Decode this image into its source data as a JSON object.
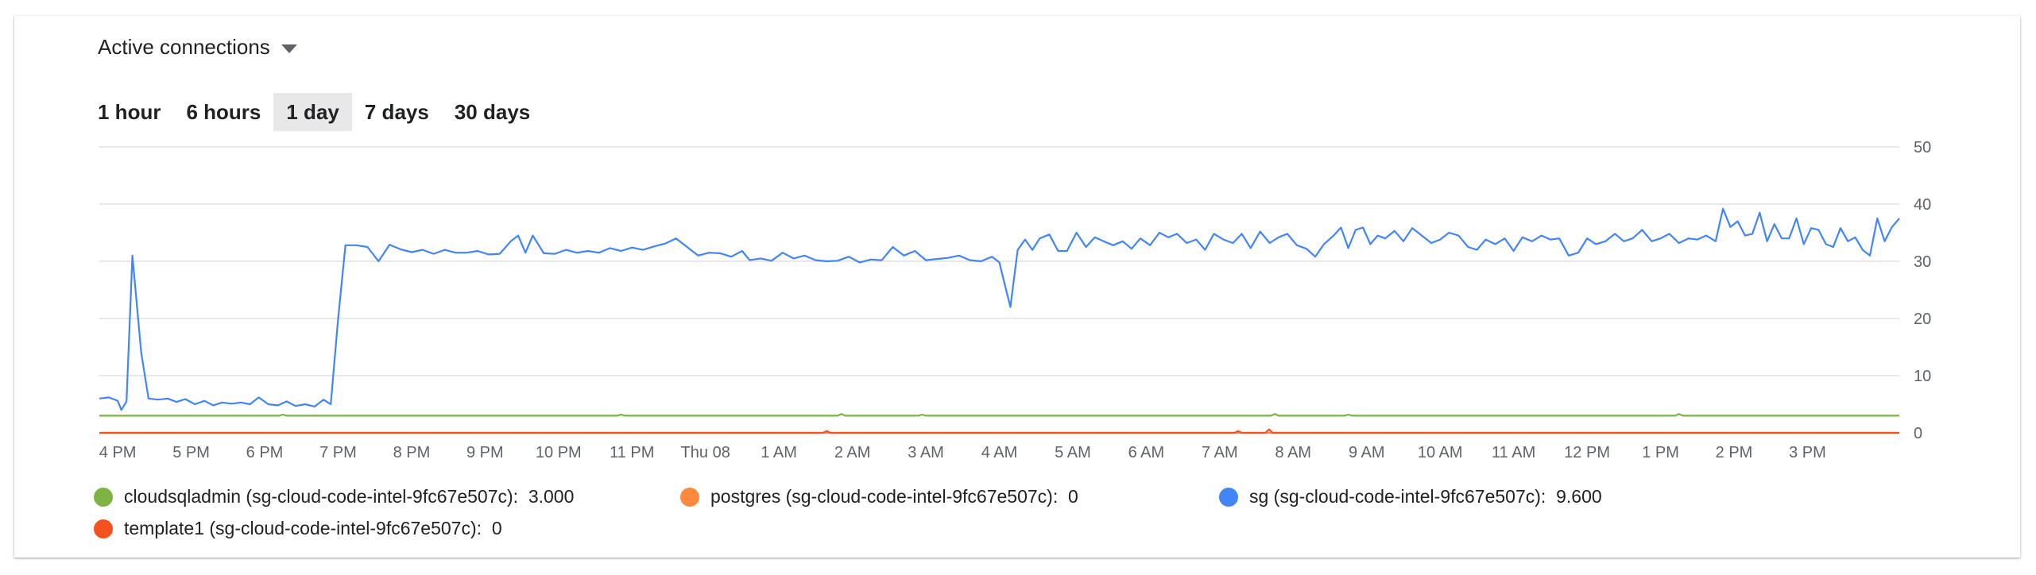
{
  "metric_selector": {
    "label": "Active connections",
    "icon": "caret-down-icon"
  },
  "time_ranges": [
    {
      "label": "1 hour",
      "active": false
    },
    {
      "label": "6 hours",
      "active": false
    },
    {
      "label": "1 day",
      "active": true
    },
    {
      "label": "7 days",
      "active": false
    },
    {
      "label": "30 days",
      "active": false
    }
  ],
  "chart_data": {
    "type": "line",
    "title": "",
    "xlabel": "",
    "ylabel": "",
    "x_unit": "hours since 4 PM",
    "ylim": [
      0,
      50
    ],
    "xlim": [
      -0.25,
      24.25
    ],
    "y_ticks": [
      "0",
      "10",
      "20",
      "30",
      "40",
      "50"
    ],
    "x_ticks": [
      "4 PM",
      "5 PM",
      "6 PM",
      "7 PM",
      "8 PM",
      "9 PM",
      "10 PM",
      "11 PM",
      "Thu 08",
      "1 AM",
      "2 AM",
      "3 AM",
      "4 AM",
      "5 AM",
      "6 AM",
      "7 AM",
      "8 AM",
      "9 AM",
      "10 AM",
      "11 AM",
      "12 PM",
      "1 PM",
      "2 PM",
      "3 PM"
    ],
    "grid": true,
    "legend_position": "bottom",
    "series": [
      {
        "name": "cloudsqladmin (sg-cloud-code-intel-9fc67e507c)",
        "color": "#7cb342",
        "legend_value": "3.000",
        "points": [
          [
            -0.25,
            3
          ],
          [
            2.2,
            3
          ],
          [
            2.25,
            3.2
          ],
          [
            2.3,
            3
          ],
          [
            6.8,
            3
          ],
          [
            6.85,
            3.2
          ],
          [
            6.9,
            3
          ],
          [
            9.8,
            3
          ],
          [
            9.85,
            3.3
          ],
          [
            9.9,
            3
          ],
          [
            10.9,
            3
          ],
          [
            10.95,
            3.2
          ],
          [
            11.0,
            3
          ],
          [
            15.7,
            3
          ],
          [
            15.75,
            3.3
          ],
          [
            15.8,
            3
          ],
          [
            16.7,
            3
          ],
          [
            16.75,
            3.2
          ],
          [
            16.8,
            3
          ],
          [
            21.2,
            3
          ],
          [
            21.25,
            3.3
          ],
          [
            21.3,
            3
          ],
          [
            24.25,
            3
          ]
        ]
      },
      {
        "name": "postgres (sg-cloud-code-intel-9fc67e507c)",
        "color": "#ff8a3d",
        "legend_value": "0",
        "points": [
          [
            -0.25,
            0
          ],
          [
            24.25,
            0
          ]
        ]
      },
      {
        "name": "sg (sg-cloud-code-intel-9fc67e507c)",
        "color": "#4285f4",
        "legend_value": "9.600",
        "points": [
          [
            -0.25,
            6.0
          ],
          [
            -0.12,
            6.2
          ],
          [
            0.0,
            5.6
          ],
          [
            0.05,
            4.0
          ],
          [
            0.12,
            5.5
          ],
          [
            0.2,
            31.0
          ],
          [
            0.32,
            14
          ],
          [
            0.42,
            6.0
          ],
          [
            0.55,
            5.8
          ],
          [
            0.68,
            6.0
          ],
          [
            0.8,
            5.4
          ],
          [
            0.92,
            5.9
          ],
          [
            1.05,
            5.0
          ],
          [
            1.18,
            5.6
          ],
          [
            1.3,
            4.8
          ],
          [
            1.42,
            5.3
          ],
          [
            1.55,
            5.1
          ],
          [
            1.68,
            5.3
          ],
          [
            1.8,
            5.0
          ],
          [
            1.92,
            6.2
          ],
          [
            2.05,
            5.0
          ],
          [
            2.18,
            4.8
          ],
          [
            2.3,
            5.5
          ],
          [
            2.42,
            4.7
          ],
          [
            2.55,
            5.0
          ],
          [
            2.68,
            4.6
          ],
          [
            2.8,
            5.8
          ],
          [
            2.9,
            5.0
          ],
          [
            3.0,
            20
          ],
          [
            3.1,
            32.8
          ],
          [
            3.25,
            32.8
          ],
          [
            3.4,
            32.5
          ],
          [
            3.55,
            30.0
          ],
          [
            3.7,
            32.9
          ],
          [
            3.85,
            32.1
          ],
          [
            4.0,
            31.6
          ],
          [
            4.15,
            32.0
          ],
          [
            4.3,
            31.3
          ],
          [
            4.45,
            32.0
          ],
          [
            4.6,
            31.5
          ],
          [
            4.75,
            31.5
          ],
          [
            4.9,
            31.8
          ],
          [
            5.05,
            31.2
          ],
          [
            5.2,
            31.3
          ],
          [
            5.35,
            33.5
          ],
          [
            5.45,
            34.5
          ],
          [
            5.55,
            31.5
          ],
          [
            5.65,
            34.5
          ],
          [
            5.8,
            31.4
          ],
          [
            5.95,
            31.3
          ],
          [
            6.1,
            32.0
          ],
          [
            6.25,
            31.5
          ],
          [
            6.4,
            31.8
          ],
          [
            6.55,
            31.5
          ],
          [
            6.7,
            32.3
          ],
          [
            6.85,
            31.8
          ],
          [
            7.0,
            32.4
          ],
          [
            7.15,
            32.0
          ],
          [
            7.3,
            32.6
          ],
          [
            7.45,
            33.1
          ],
          [
            7.6,
            34.0
          ],
          [
            7.75,
            32.5
          ],
          [
            7.9,
            31.0
          ],
          [
            8.05,
            31.5
          ],
          [
            8.2,
            31.4
          ],
          [
            8.35,
            30.8
          ],
          [
            8.5,
            31.8
          ],
          [
            8.6,
            30.2
          ],
          [
            8.75,
            30.5
          ],
          [
            8.9,
            30.1
          ],
          [
            9.05,
            31.5
          ],
          [
            9.2,
            30.5
          ],
          [
            9.35,
            31.0
          ],
          [
            9.5,
            30.2
          ],
          [
            9.65,
            30.0
          ],
          [
            9.8,
            30.1
          ],
          [
            9.95,
            30.8
          ],
          [
            10.1,
            29.8
          ],
          [
            10.25,
            30.3
          ],
          [
            10.4,
            30.2
          ],
          [
            10.55,
            32.5
          ],
          [
            10.7,
            31.0
          ],
          [
            10.85,
            31.8
          ],
          [
            11.0,
            30.2
          ],
          [
            11.15,
            30.4
          ],
          [
            11.3,
            30.6
          ],
          [
            11.45,
            31.0
          ],
          [
            11.6,
            30.2
          ],
          [
            11.75,
            30.0
          ],
          [
            11.9,
            30.8
          ],
          [
            12.0,
            29.8
          ],
          [
            12.15,
            22.0
          ],
          [
            12.25,
            32.0
          ],
          [
            12.35,
            33.8
          ],
          [
            12.45,
            32.0
          ],
          [
            12.55,
            34.0
          ],
          [
            12.68,
            34.7
          ],
          [
            12.8,
            31.8
          ],
          [
            12.92,
            31.8
          ],
          [
            13.05,
            35.0
          ],
          [
            13.18,
            32.5
          ],
          [
            13.3,
            34.2
          ],
          [
            13.42,
            33.5
          ],
          [
            13.55,
            32.8
          ],
          [
            13.68,
            33.5
          ],
          [
            13.8,
            32.2
          ],
          [
            13.92,
            34.0
          ],
          [
            14.05,
            32.8
          ],
          [
            14.18,
            35.0
          ],
          [
            14.3,
            34.2
          ],
          [
            14.42,
            34.8
          ],
          [
            14.55,
            33.2
          ],
          [
            14.68,
            33.8
          ],
          [
            14.8,
            32.0
          ],
          [
            14.92,
            34.8
          ],
          [
            15.05,
            33.8
          ],
          [
            15.18,
            33.2
          ],
          [
            15.3,
            34.8
          ],
          [
            15.42,
            32.3
          ],
          [
            15.55,
            35.2
          ],
          [
            15.68,
            33.2
          ],
          [
            15.8,
            34.2
          ],
          [
            15.92,
            34.8
          ],
          [
            16.05,
            32.8
          ],
          [
            16.18,
            32.2
          ],
          [
            16.3,
            30.8
          ],
          [
            16.42,
            33.0
          ],
          [
            16.55,
            34.5
          ],
          [
            16.65,
            35.9
          ],
          [
            16.75,
            32.3
          ],
          [
            16.85,
            35.5
          ],
          [
            16.95,
            35.9
          ],
          [
            17.05,
            33.0
          ],
          [
            17.15,
            34.5
          ],
          [
            17.25,
            34.0
          ],
          [
            17.38,
            35.3
          ],
          [
            17.5,
            33.5
          ],
          [
            17.62,
            35.8
          ],
          [
            17.75,
            34.5
          ],
          [
            17.88,
            33.2
          ],
          [
            18.0,
            33.8
          ],
          [
            18.12,
            35.0
          ],
          [
            18.25,
            34.5
          ],
          [
            18.38,
            32.5
          ],
          [
            18.5,
            32.0
          ],
          [
            18.62,
            33.8
          ],
          [
            18.75,
            33.0
          ],
          [
            18.88,
            34.0
          ],
          [
            19.0,
            31.8
          ],
          [
            19.12,
            34.2
          ],
          [
            19.25,
            33.5
          ],
          [
            19.38,
            34.5
          ],
          [
            19.5,
            33.8
          ],
          [
            19.62,
            34.0
          ],
          [
            19.75,
            31.0
          ],
          [
            19.88,
            31.5
          ],
          [
            20.0,
            34.0
          ],
          [
            20.12,
            33.0
          ],
          [
            20.25,
            33.5
          ],
          [
            20.38,
            34.8
          ],
          [
            20.5,
            33.5
          ],
          [
            20.62,
            34.0
          ],
          [
            20.75,
            35.5
          ],
          [
            20.88,
            33.5
          ],
          [
            21.0,
            34.0
          ],
          [
            21.12,
            34.8
          ],
          [
            21.25,
            33.2
          ],
          [
            21.38,
            34.0
          ],
          [
            21.5,
            33.8
          ],
          [
            21.62,
            34.5
          ],
          [
            21.75,
            33.5
          ],
          [
            21.85,
            39.2
          ],
          [
            21.95,
            36.0
          ],
          [
            22.05,
            37.0
          ],
          [
            22.15,
            34.5
          ],
          [
            22.25,
            34.8
          ],
          [
            22.35,
            38.5
          ],
          [
            22.45,
            33.5
          ],
          [
            22.55,
            36.5
          ],
          [
            22.65,
            34.0
          ],
          [
            22.75,
            34.0
          ],
          [
            22.85,
            37.5
          ],
          [
            22.95,
            33.0
          ],
          [
            23.05,
            35.8
          ],
          [
            23.15,
            35.5
          ],
          [
            23.25,
            33.0
          ],
          [
            23.35,
            32.5
          ],
          [
            23.45,
            35.8
          ],
          [
            23.55,
            33.5
          ],
          [
            23.65,
            34.2
          ],
          [
            23.75,
            32.0
          ],
          [
            23.85,
            31.0
          ],
          [
            23.95,
            37.5
          ],
          [
            24.05,
            33.5
          ],
          [
            24.15,
            36.0
          ],
          [
            24.25,
            37.5
          ]
        ]
      },
      {
        "name": "template1 (sg-cloud-code-intel-9fc67e507c)",
        "color": "#f4511e",
        "legend_value": "0",
        "points": [
          [
            -0.25,
            0
          ],
          [
            9.6,
            0
          ],
          [
            9.65,
            0.3
          ],
          [
            9.7,
            0
          ],
          [
            15.2,
            0
          ],
          [
            15.25,
            0.3
          ],
          [
            15.3,
            0
          ],
          [
            15.62,
            0
          ],
          [
            15.67,
            0.6
          ],
          [
            15.72,
            0
          ],
          [
            24.25,
            0
          ]
        ]
      }
    ]
  }
}
